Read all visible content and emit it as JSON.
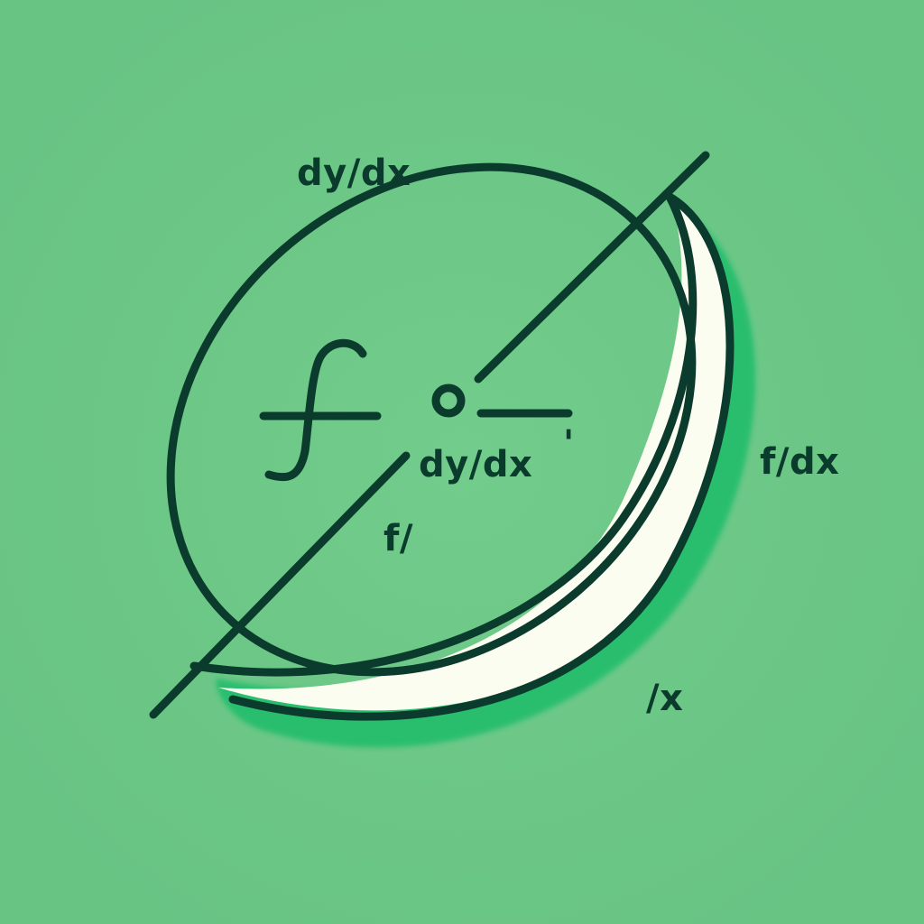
{
  "colors": {
    "background": "#6cc886",
    "stroke": "#0b3b2c",
    "crescent_fill": "#fbfdf0",
    "shadow": "#21bd6c",
    "text": "#0b3b2c"
  },
  "labels": {
    "top": "dy/dx",
    "center": "dy/dx",
    "center_mark": "'",
    "inner": "f/",
    "right": "f/dx",
    "bottom": "/x"
  }
}
